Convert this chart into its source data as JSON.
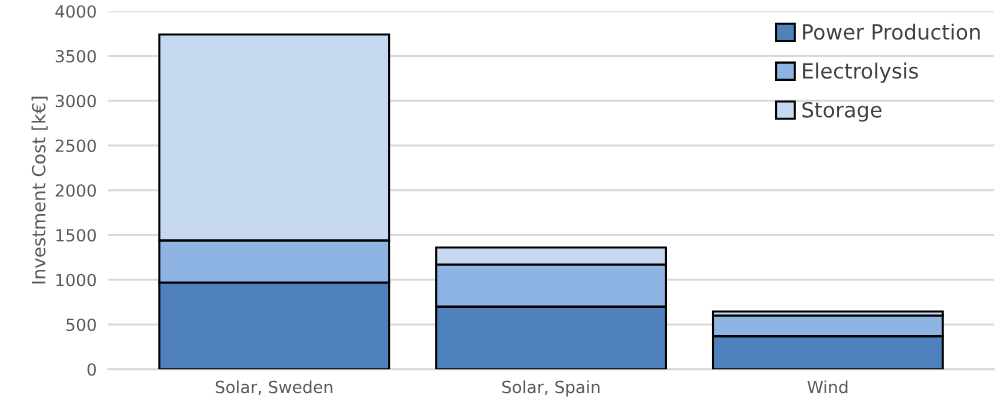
{
  "chart_data": {
    "type": "bar",
    "stacked": true,
    "ylabel": "Investment Cost [k€]",
    "categories": [
      "Solar, Sweden",
      "Solar, Spain",
      "Wind"
    ],
    "series": [
      {
        "name": "Power Production",
        "color": "#4f81bd",
        "values": [
          970,
          700,
          370
        ]
      },
      {
        "name": "Electrolysis",
        "color": "#8eb4e3",
        "values": [
          470,
          470,
          230
        ]
      },
      {
        "name": "Storage",
        "color": "#c6d9f1",
        "values": [
          2300,
          190,
          45
        ]
      }
    ],
    "ylim": [
      0,
      4000
    ],
    "yticks": [
      0,
      500,
      1000,
      1500,
      2000,
      2500,
      3000,
      3500,
      4000
    ],
    "grid": "y",
    "legend": "top right"
  }
}
